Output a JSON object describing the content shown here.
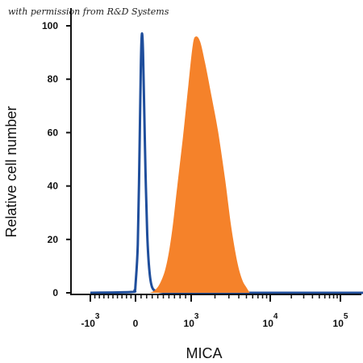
{
  "watermark": "with permission from R&D Systems",
  "chart_data": {
    "type": "area",
    "xlabel": "MICA",
    "ylabel": "Relative cell number",
    "x_scale": "biexponential",
    "ylim": [
      0,
      100
    ],
    "yticks": [
      "0",
      "20",
      "40",
      "60",
      "80",
      "100"
    ],
    "xticks": [
      {
        "base": "-10",
        "exp": "3",
        "value": -1000
      },
      {
        "base": "0",
        "exp": "",
        "value": 0
      },
      {
        "base": "10",
        "exp": "3",
        "value": 1000
      },
      {
        "base": "10",
        "exp": "4",
        "value": 10000
      },
      {
        "base": "10",
        "exp": "5",
        "value": 100000
      }
    ],
    "grid": false,
    "series": [
      {
        "style": "line",
        "color": "#1f4e9c",
        "points": [
          [
            -1000,
            0
          ],
          [
            -100,
            0.3
          ],
          [
            -20,
            1
          ],
          [
            0,
            3
          ],
          [
            40,
            18
          ],
          [
            70,
            50
          ],
          [
            95,
            85
          ],
          [
            115,
            97
          ],
          [
            135,
            90
          ],
          [
            155,
            70
          ],
          [
            180,
            45
          ],
          [
            210,
            22
          ],
          [
            250,
            8
          ],
          [
            300,
            2
          ],
          [
            400,
            0.5
          ],
          [
            600,
            0
          ],
          [
            1000,
            0
          ],
          [
            10000,
            0
          ],
          [
            100000,
            0
          ],
          [
            300000,
            0
          ]
        ]
      },
      {
        "style": "fill",
        "color": "#f5822a",
        "points": [
          [
            250,
            0
          ],
          [
            350,
            1
          ],
          [
            450,
            4
          ],
          [
            550,
            10
          ],
          [
            650,
            22
          ],
          [
            750,
            40
          ],
          [
            850,
            58
          ],
          [
            950,
            78
          ],
          [
            1050,
            93
          ],
          [
            1150,
            96
          ],
          [
            1300,
            94
          ],
          [
            1500,
            86
          ],
          [
            1800,
            74
          ],
          [
            2200,
            60
          ],
          [
            2700,
            42
          ],
          [
            3200,
            25
          ],
          [
            3800,
            12
          ],
          [
            4400,
            5
          ],
          [
            5000,
            2
          ],
          [
            5500,
            0
          ]
        ]
      }
    ]
  }
}
